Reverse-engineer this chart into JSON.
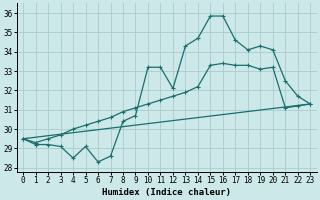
{
  "xlabel": "Humidex (Indice chaleur)",
  "xlim": [
    -0.5,
    23.5
  ],
  "ylim": [
    27.8,
    36.5
  ],
  "yticks": [
    28,
    29,
    30,
    31,
    32,
    33,
    34,
    35,
    36
  ],
  "xticks": [
    0,
    1,
    2,
    3,
    4,
    5,
    6,
    7,
    8,
    9,
    10,
    11,
    12,
    13,
    14,
    15,
    16,
    17,
    18,
    19,
    20,
    21,
    22,
    23
  ],
  "bg_color": "#cce8e8",
  "grid_color": "#aacccc",
  "line_color": "#1a6e6e",
  "line1_y": [
    29.5,
    29.2,
    29.2,
    29.1,
    28.5,
    29.1,
    28.3,
    28.6,
    30.4,
    30.7,
    33.2,
    33.2,
    32.1,
    34.3,
    34.7,
    35.85,
    35.85,
    34.6,
    34.1,
    34.3,
    34.1,
    32.5,
    31.7,
    31.3
  ],
  "line2_y": [
    29.5,
    29.3,
    29.5,
    29.7,
    30.0,
    30.2,
    30.4,
    30.6,
    30.9,
    31.1,
    31.3,
    31.5,
    31.7,
    31.9,
    32.2,
    33.3,
    33.4,
    33.3,
    33.3,
    33.1,
    33.2,
    31.1,
    31.2,
    31.3
  ],
  "line3_y": [
    29.5,
    31.3
  ]
}
